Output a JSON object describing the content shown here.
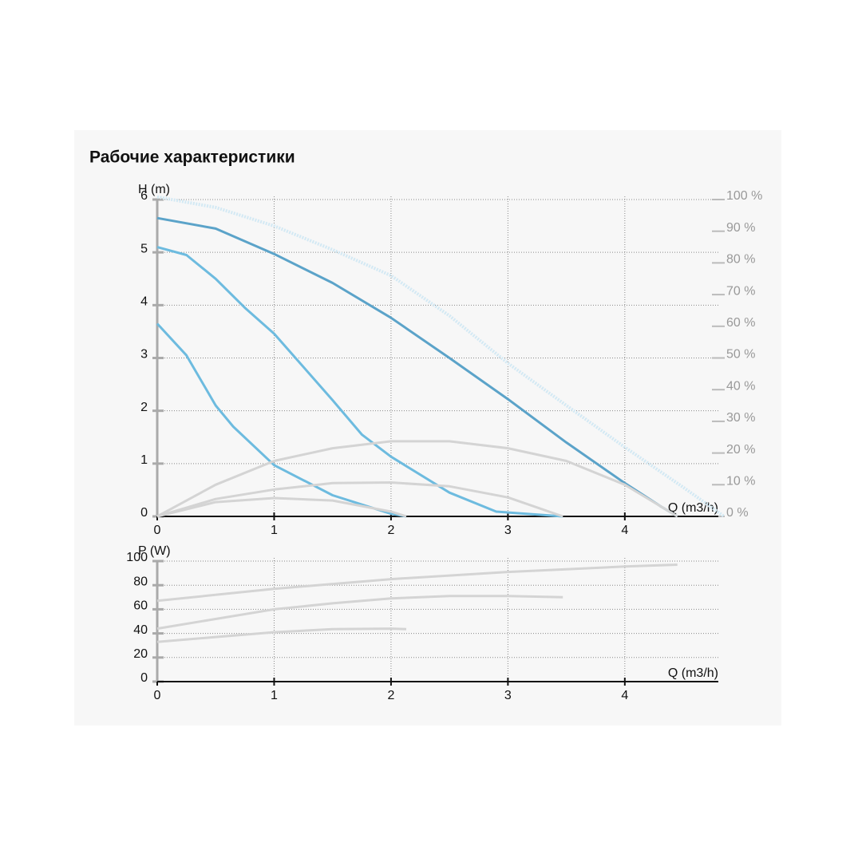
{
  "chart_data": [
    {
      "type": "line",
      "title": "Рабочие характеристики",
      "y_label": "H (m)",
      "x_label": "Q (m3/h)",
      "xlim": [
        0,
        4.8
      ],
      "xticks": [
        0,
        1,
        2,
        3,
        4
      ],
      "ylim": [
        0,
        6
      ],
      "yticks": [
        0,
        1,
        2,
        3,
        4,
        5,
        6
      ],
      "y2lim": [
        0,
        100
      ],
      "y2ticks": [
        {
          "value": 0,
          "label": "0 %"
        },
        {
          "value": 10,
          "label": "10 %"
        },
        {
          "value": 20,
          "label": "20 %"
        },
        {
          "value": 30,
          "label": "30 %"
        },
        {
          "value": 40,
          "label": "40 %"
        },
        {
          "value": 50,
          "label": "50 %"
        },
        {
          "value": 60,
          "label": "60 %"
        },
        {
          "value": 70,
          "label": "70 %"
        },
        {
          "value": 80,
          "label": "80 %"
        },
        {
          "value": 90,
          "label": "90 %"
        },
        {
          "value": {
            "v": 100
          },
          "label": "100 %"
        }
      ],
      "grid": true,
      "series": [
        {
          "color": "#d3e9f4",
          "line_style": "dotted",
          "x": [
            0,
            0.5,
            1,
            1.5,
            2,
            2.5,
            3,
            3.5,
            4,
            4.5,
            4.85
          ],
          "values": [
            6.05,
            5.85,
            5.5,
            5.05,
            4.56,
            3.8,
            2.9,
            2.1,
            1.31,
            0.55,
            0
          ]
        },
        {
          "color": "#5ba3c9",
          "x": [
            0,
            0.5,
            1,
            1.5,
            2,
            2.5,
            3,
            3.5,
            4,
            4.3,
            4.45
          ],
          "values": [
            5.65,
            5.45,
            4.97,
            4.42,
            3.76,
            3.0,
            2.22,
            1.4,
            0.63,
            0.2,
            0
          ]
        },
        {
          "color": "#6dbbdf",
          "x": [
            0,
            0.25,
            0.5,
            0.75,
            1,
            1.5,
            1.75,
            2,
            2.5,
            2.9,
            3.47
          ],
          "values": [
            5.1,
            4.95,
            4.5,
            3.95,
            3.46,
            2.2,
            1.55,
            1.13,
            0.45,
            0.09,
            0
          ]
        },
        {
          "color": "#6dbbdf",
          "x": [
            0,
            0.25,
            0.5,
            0.65,
            1,
            1.5,
            2,
            2.13
          ],
          "values": [
            3.65,
            3.05,
            2.1,
            1.7,
            0.97,
            0.4,
            0.05,
            0
          ]
        },
        {
          "color": "#d4d4d4",
          "axis": "y2",
          "x": [
            0,
            0.5,
            1,
            1.5,
            2,
            2.5,
            3,
            3.5,
            4,
            4.45
          ],
          "values": [
            0,
            10,
            17.5,
            21.5,
            23.7,
            23.7,
            21.5,
            17.5,
            10,
            0
          ]
        },
        {
          "color": "#d4d4d4",
          "axis": "y2",
          "x": [
            0,
            0.5,
            1,
            1.5,
            2,
            2.5,
            3,
            3.47
          ],
          "values": [
            0,
            5.5,
            8.5,
            10.5,
            10.7,
            9.5,
            6,
            0
          ]
        },
        {
          "color": "#d4d4d4",
          "axis": "y2",
          "x": [
            0,
            0.5,
            1,
            1.5,
            2,
            2.13
          ],
          "values": [
            0,
            4.5,
            5.8,
            5,
            1.5,
            0
          ]
        }
      ]
    },
    {
      "type": "line",
      "y_label": "P (W)",
      "x_label": "Q (m3/h)",
      "xlim": [
        0,
        4.8
      ],
      "xticks": [
        0,
        1,
        2,
        3,
        4
      ],
      "ylim": [
        0,
        100
      ],
      "yticks": [
        0,
        20,
        40,
        60,
        80,
        100
      ],
      "grid": true,
      "series": [
        {
          "color": "#d4d4d4",
          "x": [
            0,
            1,
            2,
            3,
            4,
            4.45
          ],
          "values": [
            67,
            77,
            85,
            91,
            95.5,
            97
          ]
        },
        {
          "color": "#d4d4d4",
          "x": [
            0,
            0.5,
            1,
            1.5,
            2,
            2.5,
            3,
            3.47
          ],
          "values": [
            44,
            52,
            60,
            65,
            69,
            71,
            71,
            70
          ]
        },
        {
          "color": "#d4d4d4",
          "x": [
            0,
            0.5,
            1,
            1.5,
            2,
            2.13
          ],
          "values": [
            33,
            37,
            41,
            43.5,
            44,
            43.5
          ]
        }
      ]
    }
  ]
}
